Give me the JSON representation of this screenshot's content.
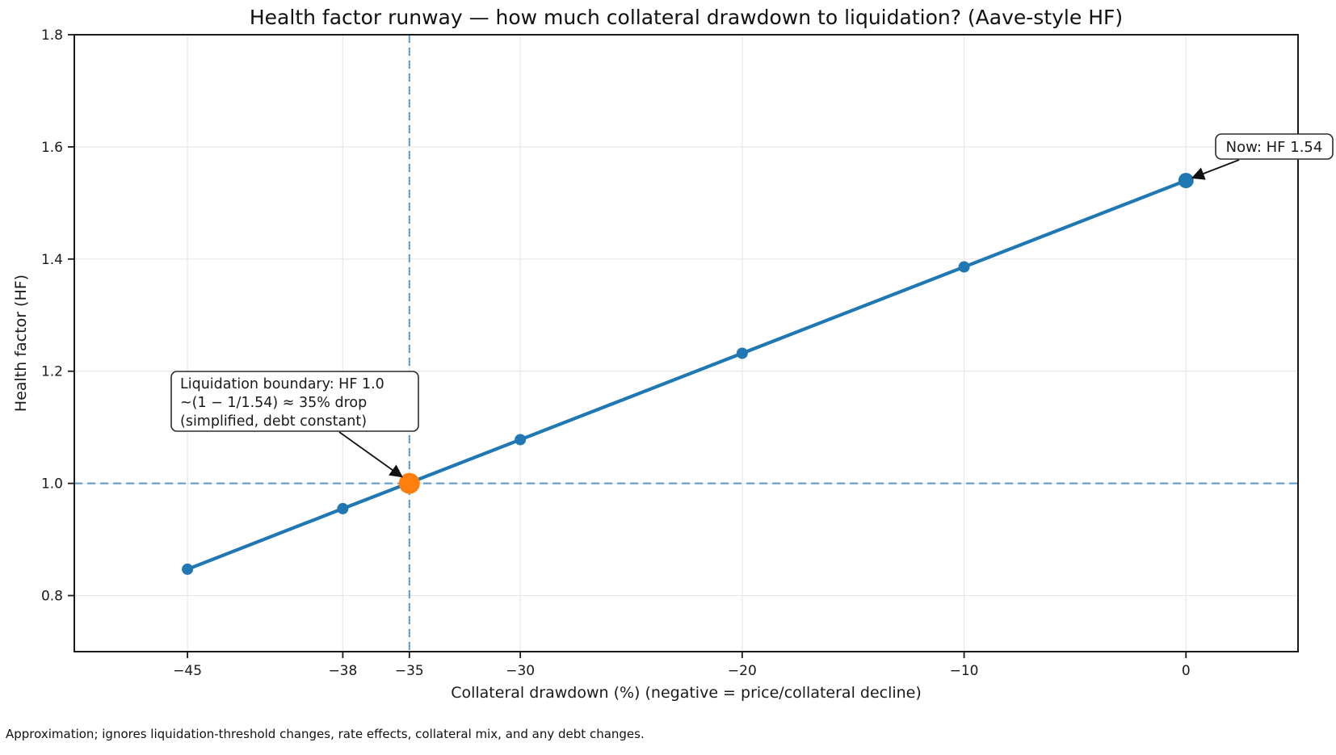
{
  "figure": {
    "footnote": "Approximation; ignores liquidation-threshold changes, rate effects, collateral mix, and any debt changes."
  },
  "chart_data": {
    "type": "line",
    "title": "Health factor runway — how much collateral drawdown to liquidation? (Aave-style HF)",
    "xlabel": "Collateral drawdown (%)  (negative = price/collateral decline)",
    "ylabel": "Health factor (HF)",
    "series": [
      {
        "name": "Health factor vs collateral drawdown",
        "x": [
          -45,
          -38,
          -35,
          -30,
          -20,
          -10,
          0
        ],
        "y": [
          0.847,
          0.955,
          1.001,
          1.078,
          1.232,
          1.386,
          1.54
        ],
        "color": "#1f77b4"
      }
    ],
    "points_of_interest": {
      "now": {
        "x": 0,
        "y": 1.54,
        "color": "#1f77b4"
      },
      "liquidation": {
        "x": -35,
        "y": 1.0,
        "color": "#ff7f0e"
      }
    },
    "reference_lines": [
      {
        "orientation": "horizontal",
        "value": 1.0
      },
      {
        "orientation": "vertical",
        "value": -35
      }
    ],
    "reference_line_color": "#1f77b4",
    "xticks": {
      "values": [
        -45,
        -38,
        -35,
        -30,
        -20,
        -10,
        0
      ],
      "labels": [
        "−45",
        "−38",
        "−35",
        "−30",
        "−20",
        "−10",
        "0"
      ]
    },
    "yticks": {
      "values": [
        0.8,
        1.0,
        1.2,
        1.4,
        1.6,
        1.8
      ],
      "labels": [
        "0.8",
        "1.0",
        "1.2",
        "1.4",
        "1.6",
        "1.8"
      ]
    },
    "xlim": [
      -50.1,
      5.05
    ],
    "ylim": [
      0.7,
      1.8
    ],
    "grid": true,
    "legend": false,
    "annotations": [
      {
        "id": "now",
        "lines": [
          "Now: HF 1.54"
        ],
        "target": {
          "x": 0,
          "y": 1.54
        }
      },
      {
        "id": "liquidation",
        "lines": [
          "Liquidation boundary: HF 1.0",
          "~(1 − 1/1.54) ≈ 35% drop",
          "(simplified, debt constant)"
        ],
        "target": {
          "x": -35,
          "y": 1.0
        }
      }
    ]
  }
}
